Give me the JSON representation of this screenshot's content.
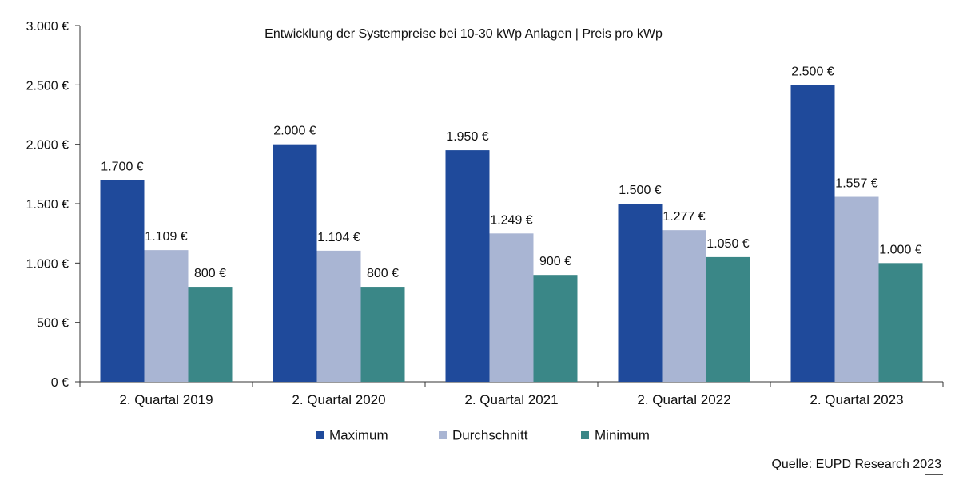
{
  "source": "Quelle: EUPD Research 2023",
  "chart_data": {
    "type": "bar",
    "title": "Entwicklung der Systempreise bei 10-30 kWp Anlagen | Preis pro kWp",
    "categories": [
      "2. Quartal 2019",
      "2. Quartal 2020",
      "2. Quartal 2021",
      "2. Quartal 2022",
      "2. Quartal 2023"
    ],
    "series": [
      {
        "name": "Maximum",
        "color": "#1f4a9b",
        "values": [
          1700,
          2000,
          1950,
          1500,
          2500
        ],
        "labels": [
          "1.700 €",
          "2.000 €",
          "1.950 €",
          "1.500 €",
          "2.500 €"
        ]
      },
      {
        "name": "Durchschnitt",
        "color": "#a9b5d3",
        "values": [
          1109,
          1104,
          1249,
          1277,
          1557
        ],
        "labels": [
          "1.109 €",
          "1.104 €",
          "1.249 €",
          "1.277 €",
          "1.557 €"
        ]
      },
      {
        "name": "Minimum",
        "color": "#3a8787",
        "values": [
          800,
          800,
          900,
          1050,
          1000
        ],
        "labels": [
          "800 €",
          "800 €",
          "900 €",
          "1.050 €",
          "1.000 €"
        ]
      }
    ],
    "ylim": [
      0,
      3000
    ],
    "yticks": [
      0,
      500,
      1000,
      1500,
      2000,
      2500,
      3000
    ],
    "ytick_labels": [
      "0 €",
      "500 €",
      "1.000 €",
      "1.500 €",
      "2.000 €",
      "2.500 €",
      "3.000 €"
    ],
    "grid": false,
    "legend": "bottom-center"
  }
}
